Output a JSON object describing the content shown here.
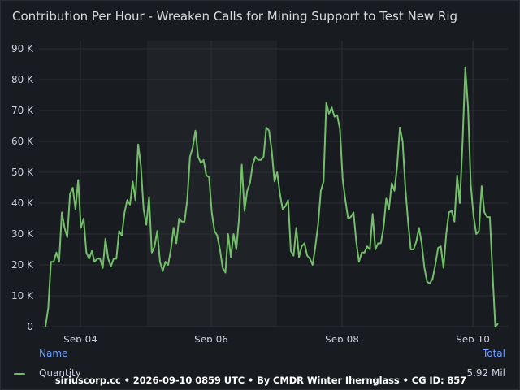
{
  "panel": {
    "title": "Contribution Per Hour - Wreaken Calls for Mining Support to Test New Rig"
  },
  "colors": {
    "background": "#181b1f",
    "series": "#73bf69",
    "grid": "#2c3036",
    "band": "#1f2226",
    "legend_header": "#6e9fff"
  },
  "legend": {
    "name_header": "Name",
    "total_header": "Total",
    "series_name": "Quantity",
    "series_total": "5.92 Mil"
  },
  "footer": {
    "text": "siriuscorp.cc • 2026-09-10 0859 UTC • By CMDR Winter Iherngl­ass • CG ID: 857"
  },
  "chart_data": {
    "type": "line",
    "title": "Contribution Per Hour - Wreaken Calls for Mining Support to Test New Rig",
    "xlabel": "",
    "ylabel": "",
    "x_ticks": [
      "Sep 04",
      "Sep 06",
      "Sep 08",
      "Sep 10"
    ],
    "y_ticks": [
      "0",
      "10 K",
      "20 K",
      "30 K",
      "40 K",
      "50 K",
      "60 K",
      "70 K",
      "80 K",
      "90 K"
    ],
    "ylim": [
      0,
      90000
    ],
    "x_unit": "hours from first sample (one sample per hour)",
    "grid": true,
    "series": [
      {
        "name": "Quantity",
        "values": [
          0,
          6000,
          21000,
          21000,
          24000,
          21000,
          37000,
          32000,
          29000,
          43000,
          45000,
          38000,
          47500,
          32000,
          35000,
          24000,
          22000,
          24500,
          21000,
          22000,
          22000,
          19000,
          28500,
          22000,
          19500,
          22000,
          22000,
          31000,
          29500,
          37000,
          41000,
          39500,
          47000,
          41000,
          59000,
          52000,
          38000,
          33000,
          42000,
          24000,
          26000,
          31000,
          21000,
          18000,
          21000,
          20000,
          25000,
          32000,
          27000,
          35000,
          34000,
          34000,
          41000,
          55000,
          58000,
          63500,
          55000,
          53000,
          54000,
          49000,
          48500,
          37000,
          31000,
          29500,
          25000,
          19000,
          17500,
          30000,
          22500,
          30000,
          25000,
          35000,
          52500,
          37500,
          44000,
          46500,
          52500,
          55000,
          54000,
          54000,
          55000,
          64500,
          63500,
          57000,
          47000,
          50000,
          43000,
          38000,
          39000,
          41000,
          24500,
          23000,
          32000,
          22500,
          26000,
          27000,
          23000,
          22000,
          20000,
          26000,
          33000,
          44000,
          47000,
          72500,
          69000,
          71000,
          68000,
          68500,
          64000,
          48000,
          41000,
          35000,
          35500,
          37000,
          27500,
          21000,
          24000,
          24000,
          26000,
          25000,
          36500,
          25000,
          27000,
          27000,
          32000,
          41500,
          38000,
          46500,
          44000,
          52000,
          64500,
          60000,
          45000,
          34000,
          25000,
          25000,
          27500,
          32000,
          27000,
          19000,
          14500,
          14000,
          15500,
          20000,
          25500,
          26000,
          19000,
          30000,
          37000,
          37500,
          34000,
          49000,
          40000,
          60000,
          84000,
          71000,
          46000,
          36000,
          30000,
          31000,
          45500,
          37000,
          35500,
          35500,
          17000,
          0,
          1000
        ]
      }
    ]
  }
}
